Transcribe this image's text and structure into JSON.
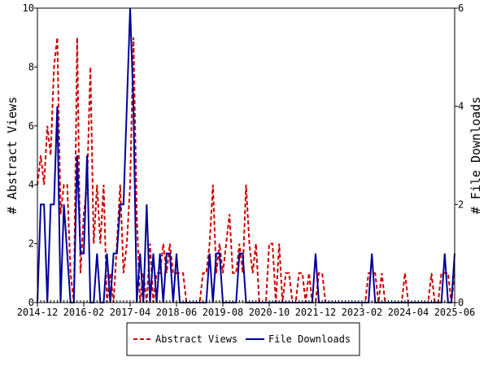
{
  "chart_data": {
    "type": "line",
    "x_ticks": [
      "2014-12",
      "2016-02",
      "2017-04",
      "2018-06",
      "2019-08",
      "2020-10",
      "2021-12",
      "2023-02",
      "2024-04",
      "2025-06"
    ],
    "x_range": [
      "2014-12",
      "2025-06"
    ],
    "ylabel_left": "# Abstract Views",
    "ylabel_right": "# File Downloads",
    "ylim_left": [
      0,
      10
    ],
    "ylim_right": [
      0,
      6
    ],
    "yticks_left": [
      "0",
      "2",
      "4",
      "6",
      "8",
      "10"
    ],
    "yticks_right": [
      "0",
      "2",
      "4",
      "6"
    ],
    "legend_position": "bottom-center",
    "grid": false,
    "series": [
      {
        "name": "Abstract Views",
        "axis": "left",
        "color": "#cc0000",
        "style": "dashed",
        "x": [
          "2014-12",
          "2015-01",
          "2015-02",
          "2015-03",
          "2015-04",
          "2015-05",
          "2015-06",
          "2015-07",
          "2015-08",
          "2015-09",
          "2015-10",
          "2015-11",
          "2015-12",
          "2016-01",
          "2016-02",
          "2016-03",
          "2016-04",
          "2016-05",
          "2016-06",
          "2016-07",
          "2016-08",
          "2016-09",
          "2016-10",
          "2016-11",
          "2016-12",
          "2017-01",
          "2017-02",
          "2017-03",
          "2017-04",
          "2017-05",
          "2017-06",
          "2017-07",
          "2017-08",
          "2017-09",
          "2017-10",
          "2017-11",
          "2017-12",
          "2018-01",
          "2018-02",
          "2018-03",
          "2018-04",
          "2018-05",
          "2018-06",
          "2018-07",
          "2018-08",
          "2018-09",
          "2018-10",
          "2018-11",
          "2018-12",
          "2019-01",
          "2019-02",
          "2019-03",
          "2019-04",
          "2019-05",
          "2019-06",
          "2019-07",
          "2019-08",
          "2019-09",
          "2019-10",
          "2019-11",
          "2019-12",
          "2020-01",
          "2020-02",
          "2020-03",
          "2020-04",
          "2020-05",
          "2020-06",
          "2020-07",
          "2020-08",
          "2020-09",
          "2020-10",
          "2020-11",
          "2020-12",
          "2021-01",
          "2021-02",
          "2021-03",
          "2021-04",
          "2021-05",
          "2021-06",
          "2021-07",
          "2021-08",
          "2021-09",
          "2021-10",
          "2021-11",
          "2021-12",
          "2022-01",
          "2022-02",
          "2022-03",
          "2022-04",
          "2022-05",
          "2022-06",
          "2022-07",
          "2022-08",
          "2022-09",
          "2022-10",
          "2022-11",
          "2022-12",
          "2023-01",
          "2023-02",
          "2023-03",
          "2023-04",
          "2023-05",
          "2023-06",
          "2023-07",
          "2023-08",
          "2023-09",
          "2023-10",
          "2023-11",
          "2023-12",
          "2024-01",
          "2024-02",
          "2024-03",
          "2024-04",
          "2024-05",
          "2024-06",
          "2024-07",
          "2024-08",
          "2024-09",
          "2024-10",
          "2024-11",
          "2024-12",
          "2025-01",
          "2025-02",
          "2025-03",
          "2025-04",
          "2025-05",
          "2025-06"
        ],
        "values": [
          4,
          5,
          4,
          6,
          5,
          8,
          9,
          3,
          4,
          4,
          1,
          0,
          9,
          1,
          3,
          4,
          8,
          2,
          4,
          2,
          4,
          0,
          1,
          0,
          2,
          4,
          1,
          2,
          4,
          9,
          3,
          0,
          1,
          0,
          2,
          0,
          1,
          1,
          2,
          1,
          2,
          1,
          1,
          1,
          1,
          0,
          0,
          0,
          0,
          0,
          1,
          1,
          2,
          4,
          1,
          2,
          1,
          2,
          3,
          1,
          1,
          2,
          1,
          4,
          2,
          1,
          2,
          0,
          0,
          0,
          2,
          2,
          0,
          2,
          0,
          1,
          1,
          0,
          0,
          1,
          1,
          0,
          1,
          0,
          0,
          1,
          1,
          0,
          0,
          0,
          0,
          0,
          0,
          0,
          0,
          0,
          0,
          0,
          0,
          0,
          1,
          1,
          1,
          0,
          1,
          0,
          0,
          0,
          0,
          0,
          0,
          1,
          0,
          0,
          0,
          0,
          0,
          0,
          0,
          1,
          0,
          0,
          1,
          1,
          1,
          0,
          1
        ]
      },
      {
        "name": "File Downloads",
        "axis": "right",
        "color": "#000099",
        "style": "solid",
        "x": [
          "2014-12",
          "2015-01",
          "2015-02",
          "2015-03",
          "2015-04",
          "2015-05",
          "2015-06",
          "2015-07",
          "2015-08",
          "2015-09",
          "2015-10",
          "2015-11",
          "2015-12",
          "2016-01",
          "2016-02",
          "2016-03",
          "2016-04",
          "2016-05",
          "2016-06",
          "2016-07",
          "2016-08",
          "2016-09",
          "2016-10",
          "2016-11",
          "2016-12",
          "2017-01",
          "2017-02",
          "2017-03",
          "2017-04",
          "2017-05",
          "2017-06",
          "2017-07",
          "2017-08",
          "2017-09",
          "2017-10",
          "2017-11",
          "2017-12",
          "2018-01",
          "2018-02",
          "2018-03",
          "2018-04",
          "2018-05",
          "2018-06",
          "2018-07",
          "2018-08",
          "2018-09",
          "2018-10",
          "2018-11",
          "2018-12",
          "2019-01",
          "2019-02",
          "2019-03",
          "2019-04",
          "2019-05",
          "2019-06",
          "2019-07",
          "2019-08",
          "2019-09",
          "2019-10",
          "2019-11",
          "2019-12",
          "2020-01",
          "2020-02",
          "2020-03",
          "2020-04",
          "2020-05",
          "2020-06",
          "2020-07",
          "2020-08",
          "2020-09",
          "2020-10",
          "2020-11",
          "2020-12",
          "2021-01",
          "2021-02",
          "2021-03",
          "2021-04",
          "2021-05",
          "2021-06",
          "2021-07",
          "2021-08",
          "2021-09",
          "2021-10",
          "2021-11",
          "2021-12",
          "2022-01",
          "2022-02",
          "2022-03",
          "2022-04",
          "2022-05",
          "2022-06",
          "2022-07",
          "2022-08",
          "2022-09",
          "2022-10",
          "2022-11",
          "2022-12",
          "2023-01",
          "2023-02",
          "2023-03",
          "2023-04",
          "2023-05",
          "2023-06",
          "2023-07",
          "2023-08",
          "2023-09",
          "2023-10",
          "2023-11",
          "2023-12",
          "2024-01",
          "2024-02",
          "2024-03",
          "2024-04",
          "2024-05",
          "2024-06",
          "2024-07",
          "2024-08",
          "2024-09",
          "2024-10",
          "2024-11",
          "2024-12",
          "2025-01",
          "2025-02",
          "2025-03",
          "2025-04",
          "2025-05",
          "2025-06"
        ],
        "values": [
          0,
          2,
          2,
          0,
          2,
          2,
          4,
          0,
          2,
          1,
          0,
          0,
          3,
          1,
          1,
          3,
          0,
          0,
          1,
          0,
          0,
          1,
          0,
          1,
          1,
          2,
          2,
          4,
          6,
          4,
          0,
          1,
          0,
          2,
          0,
          1,
          0,
          1,
          0,
          1,
          1,
          0,
          1,
          0,
          0,
          0,
          0,
          0,
          0,
          0,
          0,
          0,
          1,
          0,
          1,
          1,
          0,
          0,
          0,
          0,
          0,
          1,
          1,
          0,
          0,
          0,
          0,
          0,
          0,
          0,
          0,
          0,
          0,
          0,
          0,
          0,
          0,
          0,
          0,
          0,
          0,
          0,
          0,
          0,
          1,
          0,
          0,
          0,
          0,
          0,
          0,
          0,
          0,
          0,
          0,
          0,
          0,
          0,
          0,
          0,
          0,
          1,
          0,
          0,
          0,
          0,
          0,
          0,
          0,
          0,
          0,
          0,
          0,
          0,
          0,
          0,
          0,
          0,
          0,
          0,
          0,
          0,
          0,
          1,
          0,
          0,
          1
        ]
      }
    ]
  }
}
